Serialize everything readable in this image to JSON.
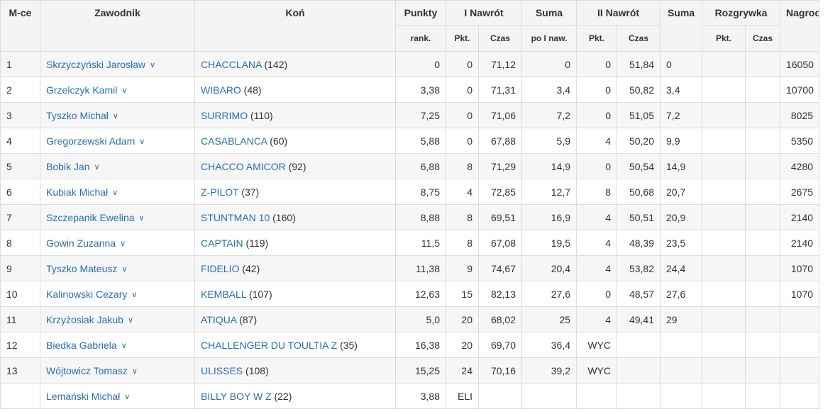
{
  "header": {
    "place": "M-ce",
    "rider": "Zawodnik",
    "horse": "Koń",
    "points": "Punkty",
    "points_sub": "rank.",
    "round1": "I Nawrót",
    "round1_pkt": "Pkt.",
    "round1_time": "Czas",
    "sum1": "Suma",
    "sum1_sub": "po I naw.",
    "round2": "II Nawrót",
    "round2_pkt": "Pkt.",
    "round2_time": "Czas",
    "sum2": "Suma",
    "jumpoff": "Rozgrywka",
    "jumpoff_pkt": "Pkt.",
    "jumpoff_time": "Czas",
    "prize": "Nagroda"
  },
  "icons": {
    "rider_dropdown": "chevron-down-icon"
  },
  "colors": {
    "link": "#2a6eb0",
    "header_bg": "#f4f4f4",
    "row_alt": "#f6f6f6"
  },
  "rows": [
    {
      "place": "1",
      "rider": "Skrzyczyński Jarosław",
      "horse": "CHACCLANA",
      "horse_id": "(142)",
      "points": "0",
      "r1_pkt": "0",
      "r1_time": "71,12",
      "sum1": "0",
      "r2_pkt": "0",
      "r2_time": "51,84",
      "sum2": "0",
      "jo_pkt": "",
      "jo_time": "",
      "prize": "16050"
    },
    {
      "place": "2",
      "rider": "Grzelczyk Kamil",
      "horse": "WIBARO",
      "horse_id": "(48)",
      "points": "3,38",
      "r1_pkt": "0",
      "r1_time": "71,31",
      "sum1": "3,4",
      "r2_pkt": "0",
      "r2_time": "50,82",
      "sum2": "3,4",
      "jo_pkt": "",
      "jo_time": "",
      "prize": "10700"
    },
    {
      "place": "3",
      "rider": "Tyszko Michał",
      "horse": "SURRIMO",
      "horse_id": "(110)",
      "points": "7,25",
      "r1_pkt": "0",
      "r1_time": "71,06",
      "sum1": "7,2",
      "r2_pkt": "0",
      "r2_time": "51,05",
      "sum2": "7,2",
      "jo_pkt": "",
      "jo_time": "",
      "prize": "8025"
    },
    {
      "place": "4",
      "rider": "Gregorzewski Adam",
      "horse": "CASABLANCA",
      "horse_id": "(60)",
      "points": "5,88",
      "r1_pkt": "0",
      "r1_time": "67,88",
      "sum1": "5,9",
      "r2_pkt": "4",
      "r2_time": "50,20",
      "sum2": "9,9",
      "jo_pkt": "",
      "jo_time": "",
      "prize": "5350"
    },
    {
      "place": "5",
      "rider": "Bobik Jan",
      "horse": "CHACCO AMICOR",
      "horse_id": "(92)",
      "points": "6,88",
      "r1_pkt": "8",
      "r1_time": "71,29",
      "sum1": "14,9",
      "r2_pkt": "0",
      "r2_time": "50,54",
      "sum2": "14,9",
      "jo_pkt": "",
      "jo_time": "",
      "prize": "4280"
    },
    {
      "place": "6",
      "rider": "Kubiak Michał",
      "horse": "Z-PILOT",
      "horse_id": "(37)",
      "points": "8,75",
      "r1_pkt": "4",
      "r1_time": "72,85",
      "sum1": "12,7",
      "r2_pkt": "8",
      "r2_time": "50,68",
      "sum2": "20,7",
      "jo_pkt": "",
      "jo_time": "",
      "prize": "2675"
    },
    {
      "place": "7",
      "rider": "Szczepanik Ewelina",
      "horse": "STUNTMAN 10",
      "horse_id": "(160)",
      "points": "8,88",
      "r1_pkt": "8",
      "r1_time": "69,51",
      "sum1": "16,9",
      "r2_pkt": "4",
      "r2_time": "50,51",
      "sum2": "20,9",
      "jo_pkt": "",
      "jo_time": "",
      "prize": "2140"
    },
    {
      "place": "8",
      "rider": "Gowin Zuzanna",
      "horse": "CAPTAIN",
      "horse_id": "(119)",
      "points": "11,5",
      "r1_pkt": "8",
      "r1_time": "67,08",
      "sum1": "19,5",
      "r2_pkt": "4",
      "r2_time": "48,39",
      "sum2": "23,5",
      "jo_pkt": "",
      "jo_time": "",
      "prize": "2140"
    },
    {
      "place": "9",
      "rider": "Tyszko Mateusz",
      "horse": "FIDELIO",
      "horse_id": "(42)",
      "points": "11,38",
      "r1_pkt": "9",
      "r1_time": "74,67",
      "sum1": "20,4",
      "r2_pkt": "4",
      "r2_time": "53,82",
      "sum2": "24,4",
      "jo_pkt": "",
      "jo_time": "",
      "prize": "1070"
    },
    {
      "place": "10",
      "rider": "Kalinowski Cezary",
      "horse": "KEMBALL",
      "horse_id": "(107)",
      "points": "12,63",
      "r1_pkt": "15",
      "r1_time": "82,13",
      "sum1": "27,6",
      "r2_pkt": "0",
      "r2_time": "48,57",
      "sum2": "27,6",
      "jo_pkt": "",
      "jo_time": "",
      "prize": "1070"
    },
    {
      "place": "11",
      "rider": "Krzyżosiak Jakub",
      "horse": "ATIQUA",
      "horse_id": "(87)",
      "points": "5,0",
      "r1_pkt": "20",
      "r1_time": "68,02",
      "sum1": "25",
      "r2_pkt": "4",
      "r2_time": "49,41",
      "sum2": "29",
      "jo_pkt": "",
      "jo_time": "",
      "prize": ""
    },
    {
      "place": "12",
      "rider": "Biedka Gabriela",
      "horse": "CHALLENGER DU TOULTIA Z",
      "horse_id": "(35)",
      "points": "16,38",
      "r1_pkt": "20",
      "r1_time": "69,70",
      "sum1": "36,4",
      "r2_pkt": "WYC",
      "r2_time": "",
      "sum2": "",
      "jo_pkt": "",
      "jo_time": "",
      "prize": ""
    },
    {
      "place": "13",
      "rider": "Wójtowicz Tomasz",
      "horse": "ULISSES",
      "horse_id": "(108)",
      "points": "15,25",
      "r1_pkt": "24",
      "r1_time": "70,16",
      "sum1": "39,2",
      "r2_pkt": "WYC",
      "r2_time": "",
      "sum2": "",
      "jo_pkt": "",
      "jo_time": "",
      "prize": ""
    },
    {
      "place": "",
      "rider": "Lemański Michał",
      "horse": "BILLY BOY W Z",
      "horse_id": "(22)",
      "points": "3,88",
      "r1_pkt": "ELI",
      "r1_time": "",
      "sum1": "",
      "r2_pkt": "",
      "r2_time": "",
      "sum2": "",
      "jo_pkt": "",
      "jo_time": "",
      "prize": ""
    }
  ]
}
